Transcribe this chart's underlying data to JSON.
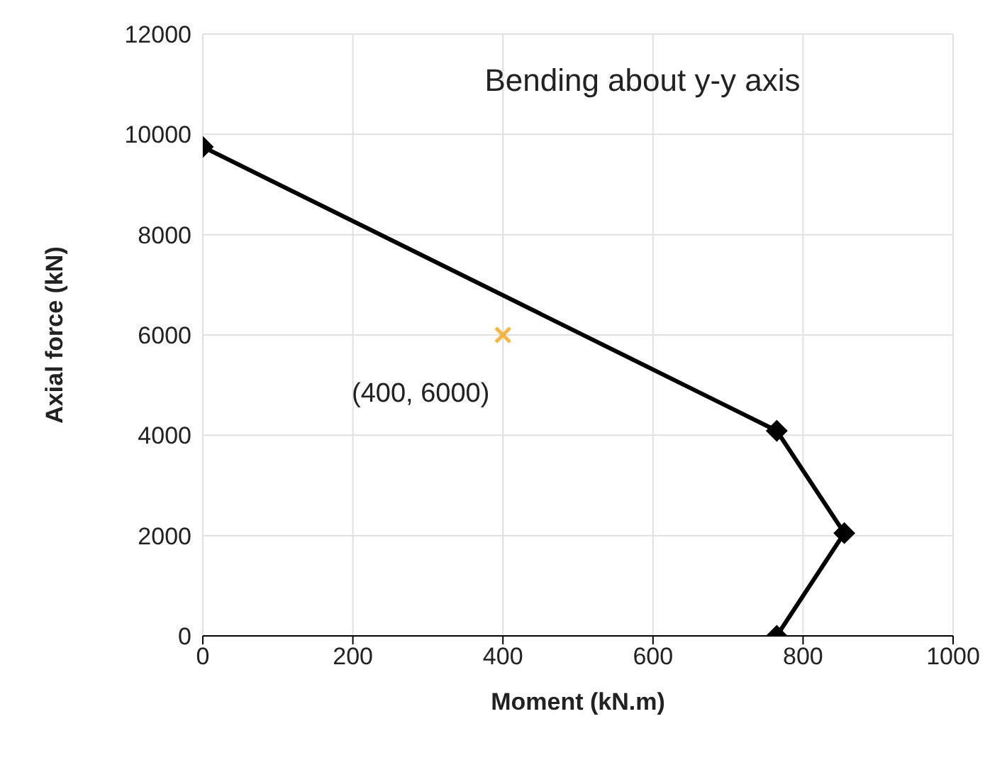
{
  "chart_data": {
    "type": "line",
    "title": "Bending about y-y axis",
    "xlabel": "Moment (kN.m)",
    "ylabel": "Axial force (kN)",
    "series": [
      {
        "color": "#000000",
        "marker": "diamond",
        "x": [
          0,
          765,
          855,
          765
        ],
        "values": [
          9750,
          4090,
          2050,
          0
        ]
      },
      {
        "type": "scatter",
        "color": "#f5b642",
        "marker": "cross",
        "x": [
          400
        ],
        "values": [
          6000
        ]
      }
    ],
    "annotations": [
      {
        "text": "(400, 6000)",
        "x": 400,
        "y": 6000
      }
    ],
    "xlim": [
      0,
      1000
    ],
    "xticks": [
      0,
      200,
      400,
      600,
      800,
      1000
    ],
    "ylim": [
      0,
      12000
    ],
    "yticks": [
      0,
      2000,
      4000,
      6000,
      8000,
      10000,
      12000
    ],
    "grid": true
  }
}
